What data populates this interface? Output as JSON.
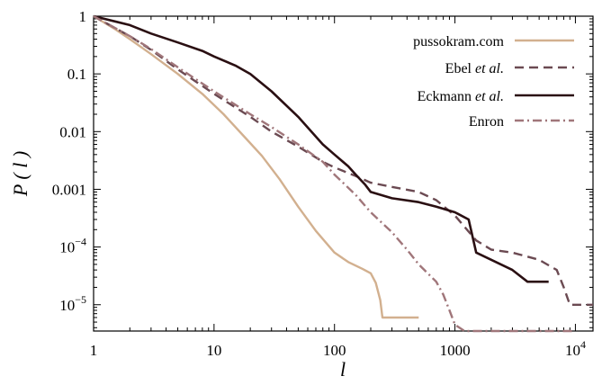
{
  "chart_data": {
    "type": "line",
    "xlabel": "l",
    "ylabel": "P ( l )",
    "xscale": "log",
    "yscale": "log",
    "xlim": [
      1,
      14000
    ],
    "ylim": [
      3.5e-06,
      1
    ],
    "grid": false,
    "legend_position": "top-right",
    "x_ticks": [
      {
        "value": 1,
        "label": "1"
      },
      {
        "value": 10,
        "label": "10"
      },
      {
        "value": 100,
        "label": "100"
      },
      {
        "value": 1000,
        "label": "1000"
      },
      {
        "value": 10000,
        "base": "10",
        "exp": "4"
      }
    ],
    "y_ticks": [
      {
        "value": 1,
        "label": "1"
      },
      {
        "value": 0.1,
        "label": "0.1"
      },
      {
        "value": 0.01,
        "label": "0.01"
      },
      {
        "value": 0.001,
        "label": "0.001"
      },
      {
        "value": 0.0001,
        "base": "10",
        "exp": "−4"
      },
      {
        "value": 1e-05,
        "base": "10",
        "exp": "−5"
      }
    ],
    "series": [
      {
        "name": "pussokram.com",
        "color": "#d2b08f",
        "style": "solid",
        "x": [
          1,
          1.5,
          2,
          3,
          5,
          8,
          12,
          18,
          25,
          35,
          50,
          70,
          100,
          130,
          170,
          200,
          220,
          240,
          250,
          500
        ],
        "y": [
          1,
          0.6,
          0.4,
          0.22,
          0.1,
          0.045,
          0.02,
          0.008,
          0.0038,
          0.0015,
          0.0005,
          0.00019,
          8e-05,
          5.5e-05,
          4.2e-05,
          3.5e-05,
          2.4e-05,
          1.2e-05,
          6e-06,
          6e-06
        ]
      },
      {
        "name": "Ebel et al.",
        "color": "#6b4a52",
        "style": "dashed",
        "x": [
          1,
          2,
          3,
          5,
          10,
          20,
          30,
          50,
          80,
          100,
          150,
          200,
          300,
          500,
          700,
          1000,
          1500,
          2000,
          3000,
          5000,
          7000,
          8000,
          9000,
          14000
        ],
        "y": [
          1,
          0.45,
          0.26,
          0.12,
          0.045,
          0.018,
          0.01,
          0.0055,
          0.003,
          0.0024,
          0.0017,
          0.0013,
          0.0011,
          0.0009,
          0.00065,
          0.00035,
          0.00013,
          9e-05,
          8e-05,
          6e-05,
          4e-05,
          2e-05,
          1e-05,
          1e-05
        ]
      },
      {
        "name": "Eckmann et al.",
        "color": "#2a0f12",
        "style": "solid",
        "x": [
          1,
          2,
          3,
          5,
          8,
          10,
          15,
          20,
          30,
          50,
          80,
          100,
          130,
          150,
          180,
          200,
          300,
          500,
          700,
          1000,
          1300,
          1500,
          2000,
          3000,
          4000,
          6000
        ],
        "y": [
          1,
          0.7,
          0.5,
          0.35,
          0.25,
          0.2,
          0.14,
          0.1,
          0.05,
          0.018,
          0.006,
          0.004,
          0.0025,
          0.0018,
          0.0012,
          0.0009,
          0.0007,
          0.0006,
          0.0005,
          0.0004,
          0.0003,
          8e-05,
          6e-05,
          4e-05,
          2.5e-05,
          2.5e-05
        ]
      },
      {
        "name": "Enron",
        "color": "#a0767a",
        "style": "dashdot",
        "x": [
          1,
          2,
          3,
          5,
          10,
          20,
          30,
          50,
          80,
          100,
          150,
          200,
          300,
          400,
          500,
          700,
          800,
          900,
          1000,
          1200,
          3000,
          5000,
          10000
        ],
        "y": [
          1,
          0.45,
          0.27,
          0.13,
          0.05,
          0.02,
          0.012,
          0.006,
          0.003,
          0.0018,
          0.0008,
          0.0004,
          0.00018,
          9e-05,
          5e-05,
          2.5e-05,
          1.5e-05,
          8e-06,
          4.5e-06,
          3.5e-06,
          3.5e-06,
          3.5e-06,
          3.5e-06
        ]
      }
    ]
  }
}
